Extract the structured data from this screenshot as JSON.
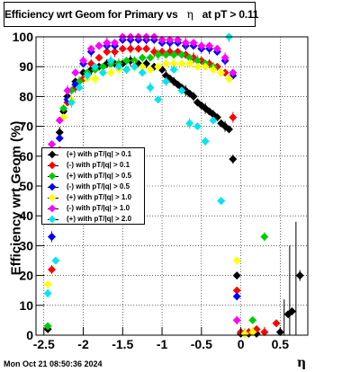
{
  "title": {
    "prefix": "Efficiency wrt Geom for Primary vs",
    "symbol": "η",
    "suffix": "at pT > 0.11"
  },
  "footer_timestamp": "Mon Oct 21 08:50:36 2024",
  "chart_data": {
    "type": "scatter",
    "xlabel": "η",
    "ylabel": "Efficiency wrt Geom (%)",
    "xlim": [
      -2.6,
      0.85
    ],
    "ylim": [
      0,
      100
    ],
    "x_ticks": [
      -2.5,
      -2,
      -1.5,
      -1,
      -0.5,
      0,
      0.5
    ],
    "x_tick_labels": [
      "-2.5",
      "-2",
      "-1.5",
      "-1",
      "-0.5",
      "0",
      "0.5"
    ],
    "y_ticks": [
      0,
      10,
      20,
      30,
      40,
      50,
      60,
      70,
      80,
      90,
      100
    ],
    "y_tick_labels": [
      "0",
      "10",
      "20",
      "30",
      "40",
      "50",
      "60",
      "70",
      "80",
      "90",
      "100"
    ],
    "grid": true,
    "legend_position": "middle-left",
    "series": [
      {
        "name": "(+) with pT/|q| > 0.1",
        "color": "#000000",
        "points": [
          [
            -2.45,
            2
          ],
          [
            -2.35,
            60
          ],
          [
            -2.3,
            68
          ],
          [
            -2.25,
            75
          ],
          [
            -2.2,
            80
          ],
          [
            -2.1,
            85
          ],
          [
            -2.0,
            88
          ],
          [
            -1.9,
            89
          ],
          [
            -1.8,
            90
          ],
          [
            -1.7,
            91
          ],
          [
            -1.6,
            91
          ],
          [
            -1.5,
            91
          ],
          [
            -1.4,
            92
          ],
          [
            -1.3,
            91
          ],
          [
            -1.2,
            91
          ],
          [
            -1.1,
            90
          ],
          [
            -1.0,
            89
          ],
          [
            -0.95,
            87
          ],
          [
            -0.9,
            86
          ],
          [
            -0.85,
            85
          ],
          [
            -0.8,
            84
          ],
          [
            -0.75,
            83
          ],
          [
            -0.7,
            82
          ],
          [
            -0.65,
            81
          ],
          [
            -0.6,
            80
          ],
          [
            -0.55,
            78
          ],
          [
            -0.5,
            77
          ],
          [
            -0.45,
            76
          ],
          [
            -0.4,
            75
          ],
          [
            -0.35,
            74
          ],
          [
            -0.3,
            73
          ],
          [
            -0.25,
            71
          ],
          [
            -0.2,
            70
          ],
          [
            -0.15,
            69
          ],
          [
            -0.1,
            59
          ],
          [
            -0.05,
            20
          ],
          [
            0.0,
            0.5
          ],
          [
            0.1,
            0.5
          ],
          [
            0.2,
            0.5
          ],
          [
            0.5,
            1
          ],
          [
            0.6,
            7
          ],
          [
            0.65,
            8
          ],
          [
            0.75,
            20
          ]
        ],
        "errors": [
          [
            0.7,
            38
          ],
          [
            0.62,
            30
          ],
          [
            0.55,
            12
          ]
        ]
      },
      {
        "name": "(-) with pT/|q| > 0.1",
        "color": "#ff0000",
        "points": [
          [
            -2.4,
            22
          ],
          [
            -2.3,
            62
          ],
          [
            -2.2,
            78
          ],
          [
            -2.1,
            83
          ],
          [
            -2.0,
            86
          ],
          [
            -1.9,
            91
          ],
          [
            -1.8,
            93
          ],
          [
            -1.7,
            95
          ],
          [
            -1.6,
            95
          ],
          [
            -1.5,
            96
          ],
          [
            -1.4,
            96
          ],
          [
            -1.3,
            96
          ],
          [
            -1.2,
            96
          ],
          [
            -1.1,
            95
          ],
          [
            -1.0,
            95
          ],
          [
            -0.9,
            95
          ],
          [
            -0.8,
            95
          ],
          [
            -0.7,
            94
          ],
          [
            -0.6,
            93
          ],
          [
            -0.5,
            92
          ],
          [
            -0.4,
            91
          ],
          [
            -0.3,
            90
          ],
          [
            -0.2,
            88
          ],
          [
            -0.1,
            73
          ],
          [
            -0.05,
            15
          ],
          [
            0.0,
            1
          ],
          [
            0.1,
            1
          ],
          [
            0.2,
            2
          ],
          [
            0.3,
            1
          ],
          [
            0.45,
            4
          ]
        ]
      },
      {
        "name": "(+) with pT/|q| > 0.5",
        "color": "#00cc00",
        "points": [
          [
            -2.45,
            3
          ],
          [
            -2.35,
            58
          ],
          [
            -2.25,
            76
          ],
          [
            -2.15,
            82
          ],
          [
            -2.05,
            85
          ],
          [
            -1.95,
            88
          ],
          [
            -1.85,
            89
          ],
          [
            -1.75,
            90
          ],
          [
            -1.65,
            91
          ],
          [
            -1.55,
            91
          ],
          [
            -1.45,
            92
          ],
          [
            -1.35,
            92
          ],
          [
            -1.25,
            93
          ],
          [
            -1.15,
            93
          ],
          [
            -1.05,
            94
          ],
          [
            -0.95,
            94
          ],
          [
            -0.85,
            94
          ],
          [
            -0.75,
            94
          ],
          [
            -0.65,
            93
          ],
          [
            -0.55,
            92
          ],
          [
            -0.45,
            91
          ],
          [
            -0.35,
            90
          ],
          [
            -0.25,
            88
          ],
          [
            -0.15,
            86
          ],
          [
            0.05,
            0.5
          ],
          [
            0.15,
            5
          ],
          [
            0.3,
            33
          ]
        ]
      },
      {
        "name": "(-) with pT/|q| > 0.5",
        "color": "#0000ff",
        "points": [
          [
            -2.4,
            33
          ],
          [
            -2.3,
            66
          ],
          [
            -2.2,
            79
          ],
          [
            -2.1,
            84
          ],
          [
            -2.0,
            91
          ],
          [
            -1.9,
            95
          ],
          [
            -1.8,
            97
          ],
          [
            -1.7,
            97
          ],
          [
            -1.6,
            97
          ],
          [
            -1.5,
            99
          ],
          [
            -1.4,
            99
          ],
          [
            -1.3,
            99
          ],
          [
            -1.2,
            99
          ],
          [
            -1.1,
            99
          ],
          [
            -1.0,
            98
          ],
          [
            -0.9,
            98
          ],
          [
            -0.8,
            98
          ],
          [
            -0.7,
            97
          ],
          [
            -0.6,
            97
          ],
          [
            -0.5,
            96
          ],
          [
            -0.4,
            96
          ],
          [
            -0.3,
            95
          ],
          [
            -0.2,
            92
          ],
          [
            -0.1,
            87
          ],
          [
            -0.05,
            13
          ]
        ]
      },
      {
        "name": "(+) with pT/|q| > 1.0",
        "color": "#ffff00",
        "points": [
          [
            -2.45,
            17
          ],
          [
            -2.35,
            55
          ],
          [
            -2.25,
            73
          ],
          [
            -2.15,
            79
          ],
          [
            -2.05,
            83
          ],
          [
            -1.95,
            86
          ],
          [
            -1.85,
            86
          ],
          [
            -1.75,
            88
          ],
          [
            -1.65,
            88
          ],
          [
            -1.55,
            89
          ],
          [
            -1.45,
            89
          ],
          [
            -1.35,
            90
          ],
          [
            -1.25,
            90
          ],
          [
            -1.15,
            89
          ],
          [
            -1.05,
            90
          ],
          [
            -0.95,
            91
          ],
          [
            -0.85,
            91
          ],
          [
            -0.75,
            91
          ],
          [
            -0.65,
            91
          ],
          [
            -0.55,
            90
          ],
          [
            -0.45,
            90
          ],
          [
            -0.35,
            89
          ],
          [
            -0.25,
            88
          ],
          [
            -0.15,
            86
          ],
          [
            -0.05,
            25
          ],
          [
            0.05,
            0.5
          ],
          [
            0.15,
            1
          ]
        ]
      },
      {
        "name": "(-) with pT/|q| > 1.0",
        "color": "#ff00ff",
        "points": [
          [
            -2.4,
            64
          ],
          [
            -2.3,
            72
          ],
          [
            -2.2,
            82
          ],
          [
            -2.1,
            88
          ],
          [
            -2.0,
            92
          ],
          [
            -1.9,
            96
          ],
          [
            -1.8,
            97
          ],
          [
            -1.7,
            98
          ],
          [
            -1.6,
            98
          ],
          [
            -1.5,
            100
          ],
          [
            -1.4,
            100
          ],
          [
            -1.3,
            100
          ],
          [
            -1.2,
            100
          ],
          [
            -1.1,
            100
          ],
          [
            -1.0,
            99
          ],
          [
            -0.9,
            99
          ],
          [
            -0.8,
            99
          ],
          [
            -0.7,
            98
          ],
          [
            -0.6,
            98
          ],
          [
            -0.5,
            97
          ],
          [
            -0.4,
            97
          ],
          [
            -0.3,
            96
          ],
          [
            -0.2,
            93
          ],
          [
            -0.1,
            88
          ],
          [
            -0.05,
            5
          ]
        ]
      },
      {
        "name": "(+) with pT/|q| > 2.0",
        "color": "#00e5ee",
        "points": [
          [
            -2.45,
            14
          ],
          [
            -2.35,
            25
          ],
          [
            -2.25,
            60
          ],
          [
            -2.15,
            78
          ],
          [
            -2.05,
            83
          ],
          [
            -1.95,
            87
          ],
          [
            -1.85,
            90
          ],
          [
            -1.75,
            88
          ],
          [
            -1.65,
            92
          ],
          [
            -1.55,
            90
          ],
          [
            -1.45,
            89
          ],
          [
            -1.35,
            90
          ],
          [
            -1.25,
            88
          ],
          [
            -1.15,
            83
          ],
          [
            -1.05,
            79
          ],
          [
            -0.95,
            85
          ],
          [
            -0.85,
            89
          ],
          [
            -0.75,
            82
          ],
          [
            -0.65,
            71
          ],
          [
            -0.55,
            70
          ],
          [
            -0.45,
            65
          ],
          [
            -0.35,
            72
          ],
          [
            -0.25,
            45
          ],
          [
            -0.15,
            100
          ]
        ]
      }
    ]
  }
}
